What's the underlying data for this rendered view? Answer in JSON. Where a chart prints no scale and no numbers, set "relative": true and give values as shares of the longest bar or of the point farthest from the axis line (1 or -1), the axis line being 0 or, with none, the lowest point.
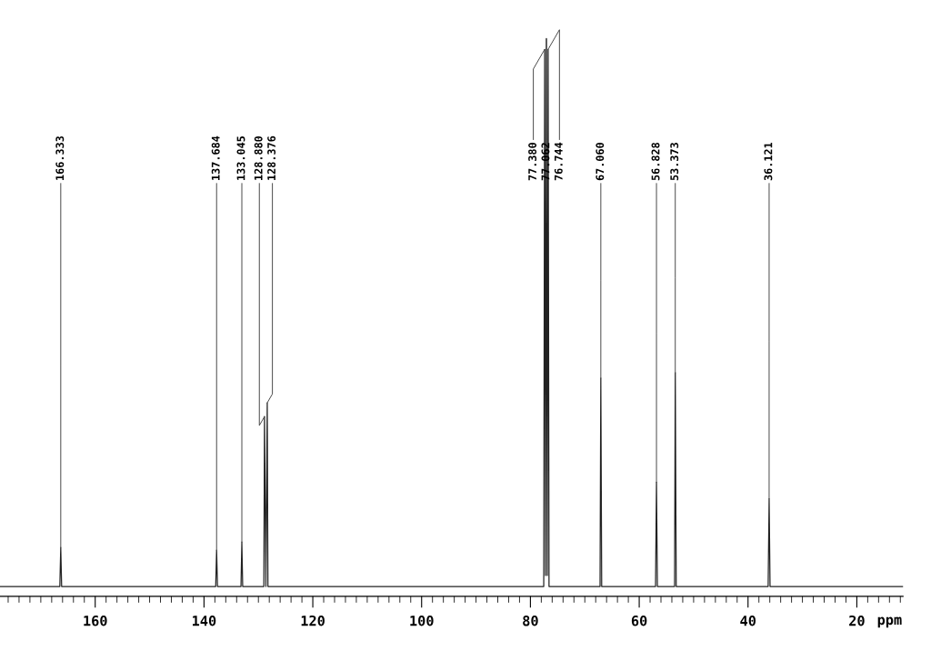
{
  "chart_data": {
    "type": "line",
    "relative": true,
    "xlabel": "ppm",
    "xlim": [
      177.5,
      11.5
    ],
    "xticks": [
      {
        "value": 176,
        "label": null
      },
      {
        "value": 174,
        "label": null
      },
      {
        "value": 172,
        "label": null
      },
      {
        "value": 170,
        "label": null
      },
      {
        "value": 168,
        "label": null
      },
      {
        "value": 166,
        "label": null
      },
      {
        "value": 164,
        "label": null
      },
      {
        "value": 162,
        "label": null
      },
      160,
      {
        "value": 158,
        "label": null
      },
      {
        "value": 156,
        "label": null
      },
      {
        "value": 154,
        "label": null
      },
      {
        "value": 152,
        "label": null
      },
      {
        "value": 150,
        "label": null
      },
      {
        "value": 148,
        "label": null
      },
      {
        "value": 146,
        "label": null
      },
      {
        "value": 144,
        "label": null
      },
      {
        "value": 142,
        "label": null
      },
      140,
      {
        "value": 138,
        "label": null
      },
      {
        "value": 136,
        "label": null
      },
      {
        "value": 134,
        "label": null
      },
      {
        "value": 132,
        "label": null
      },
      {
        "value": 130,
        "label": null
      },
      {
        "value": 128,
        "label": null
      },
      {
        "value": 126,
        "label": null
      },
      {
        "value": 124,
        "label": null
      },
      {
        "value": 122,
        "label": null
      },
      120,
      {
        "value": 118,
        "label": null
      },
      {
        "value": 116,
        "label": null
      },
      {
        "value": 114,
        "label": null
      },
      {
        "value": 112,
        "label": null
      },
      {
        "value": 110,
        "label": null
      },
      {
        "value": 108,
        "label": null
      },
      {
        "value": 106,
        "label": null
      },
      {
        "value": 104,
        "label": null
      },
      {
        "value": 102,
        "label": null
      },
      100,
      {
        "value": 98,
        "label": null
      },
      {
        "value": 96,
        "label": null
      },
      {
        "value": 94,
        "label": null
      },
      {
        "value": 92,
        "label": null
      },
      {
        "value": 90,
        "label": null
      },
      {
        "value": 88,
        "label": null
      },
      {
        "value": 86,
        "label": null
      },
      {
        "value": 84,
        "label": null
      },
      {
        "value": 82,
        "label": null
      },
      80,
      {
        "value": 78,
        "label": null
      },
      {
        "value": 76,
        "label": null
      },
      {
        "value": 74,
        "label": null
      },
      {
        "value": 72,
        "label": null
      },
      {
        "value": 70,
        "label": null
      },
      {
        "value": 68,
        "label": null
      },
      {
        "value": 66,
        "label": null
      },
      {
        "value": 64,
        "label": null
      },
      {
        "value": 62,
        "label": null
      },
      60,
      {
        "value": 58,
        "label": null
      },
      {
        "value": 56,
        "label": null
      },
      {
        "value": 54,
        "label": null
      },
      {
        "value": 52,
        "label": null
      },
      {
        "value": 50,
        "label": null
      },
      {
        "value": 48,
        "label": null
      },
      {
        "value": 46,
        "label": null
      },
      {
        "value": 44,
        "label": null
      },
      {
        "value": 42,
        "label": null
      },
      40,
      {
        "value": 38,
        "label": null
      },
      {
        "value": 36,
        "label": null
      },
      {
        "value": 34,
        "label": null
      },
      {
        "value": 32,
        "label": null
      },
      {
        "value": 30,
        "label": null
      },
      {
        "value": 28,
        "label": null
      },
      {
        "value": 26,
        "label": null
      },
      {
        "value": 24,
        "label": null
      },
      {
        "value": 22,
        "label": null
      },
      20,
      {
        "value": 18,
        "label": null
      },
      {
        "value": 16,
        "label": null
      },
      {
        "value": 14,
        "label": null
      },
      {
        "value": 12,
        "label": null
      }
    ],
    "series": [
      {
        "color": "#222222",
        "x": [
          177.5,
          166.5,
          166.333,
          166.17,
          137.85,
          137.684,
          137.52,
          133.2,
          133.045,
          132.89,
          129.0,
          128.88,
          128.62,
          128.376,
          128.25,
          77.55,
          77.38,
          77.22,
          77.062,
          76.9,
          76.744,
          76.58,
          67.2,
          67.06,
          66.9,
          57.0,
          56.828,
          56.66,
          53.5,
          53.373,
          53.2,
          36.3,
          36.121,
          35.95,
          11.5
        ],
        "values": [
          0,
          0,
          0.071,
          0,
          0,
          0.066,
          0,
          0,
          0.081,
          0,
          0,
          0.31,
          0,
          0.335,
          0,
          0,
          0.98,
          0.02,
          1,
          0.02,
          0.98,
          0,
          0,
          0.38,
          0,
          0,
          0.19,
          0,
          0,
          0.39,
          0,
          0,
          0.16,
          0,
          0
        ]
      }
    ],
    "annotations": [
      {
        "text": "166.333",
        "x": 166.333,
        "y": 0.071
      },
      {
        "text": "137.684",
        "x": 137.684,
        "y": 0.066
      },
      {
        "text": "133.045",
        "x": 133.045,
        "y": 0.081
      },
      {
        "text": "128.880",
        "x": 128.88,
        "y": 0.31
      },
      {
        "text": "128.376",
        "x": 128.376,
        "y": 0.335
      },
      {
        "text": "77.380",
        "x": 77.38,
        "y": 0.98
      },
      {
        "text": "77.062",
        "x": 77.062,
        "y": 1
      },
      {
        "text": "76.744",
        "x": 76.744,
        "y": 0.98
      },
      {
        "text": "67.060",
        "x": 67.06,
        "y": 0.38
      },
      {
        "text": "56.828",
        "x": 56.828,
        "y": 0.19
      },
      {
        "text": "53.373",
        "x": 53.373,
        "y": 0.39
      },
      {
        "text": "36.121",
        "x": 36.121,
        "y": 0.16
      }
    ],
    "grid": false,
    "legend": false
  }
}
